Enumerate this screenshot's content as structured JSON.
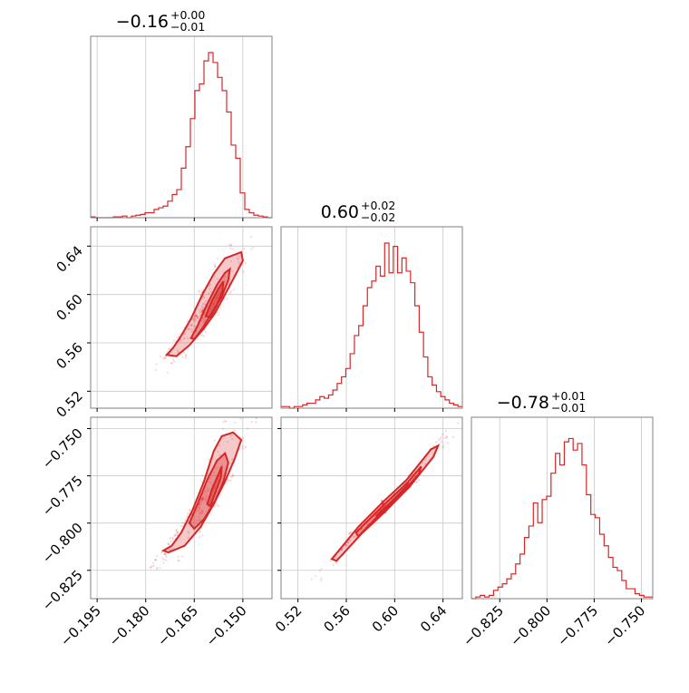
{
  "chart_data": {
    "type": "corner",
    "color": "#d62728",
    "grid": true,
    "parameters": [
      {
        "title": {
          "value": "−0.16",
          "upper": "+0.00",
          "lower": "−0.01"
        },
        "range": [
          -0.197,
          -0.141
        ],
        "ticks": [
          -0.195,
          -0.18,
          -0.165,
          -0.15
        ],
        "tick_labels": [
          "−0.195",
          "−0.180",
          "−0.165",
          "−0.150"
        ],
        "hist": [
          0.005,
          0.0,
          0.0,
          0.0,
          0.0,
          0.005,
          0.005,
          0.01,
          0.0,
          0.01,
          0.015,
          0.02,
          0.03,
          0.03,
          0.05,
          0.06,
          0.07,
          0.1,
          0.14,
          0.17,
          0.3,
          0.43,
          0.6,
          0.77,
          0.81,
          0.95,
          1.0,
          0.94,
          0.85,
          0.77,
          0.64,
          0.44,
          0.36,
          0.15,
          0.05,
          0.03,
          0.015,
          0.01,
          0.005,
          0.0
        ]
      },
      {
        "title": {
          "value": "0.60",
          "upper": "+0.02",
          "lower": "−0.02"
        },
        "range": [
          0.506,
          0.656
        ],
        "ticks": [
          0.52,
          0.56,
          0.6,
          0.64
        ],
        "tick_labels": [
          "0.52",
          "0.56",
          "0.60",
          "0.64"
        ],
        "hist": [
          0.01,
          0.01,
          0.0,
          0.01,
          0.01,
          0.02,
          0.03,
          0.03,
          0.05,
          0.07,
          0.06,
          0.08,
          0.11,
          0.15,
          0.19,
          0.24,
          0.33,
          0.44,
          0.5,
          0.62,
          0.73,
          0.77,
          0.86,
          0.8,
          1.0,
          0.82,
          0.98,
          0.82,
          0.91,
          0.83,
          0.76,
          0.62,
          0.46,
          0.31,
          0.19,
          0.14,
          0.1,
          0.07,
          0.05,
          0.03,
          0.02,
          0.01
        ]
      },
      {
        "title": {
          "value": "−0.78",
          "upper": "+0.01",
          "lower": "−0.01"
        },
        "range": [
          -0.84,
          -0.744
        ],
        "ticks": [
          -0.825,
          -0.8,
          -0.775,
          -0.75
        ],
        "tick_labels": [
          "−0.825",
          "−0.800",
          "−0.775",
          "−0.750"
        ],
        "hist": [
          0.0,
          0.01,
          0.02,
          0.01,
          0.02,
          0.05,
          0.07,
          0.09,
          0.12,
          0.15,
          0.21,
          0.27,
          0.37,
          0.44,
          0.58,
          0.46,
          0.6,
          0.62,
          0.76,
          0.88,
          0.81,
          0.95,
          0.97,
          0.9,
          0.94,
          0.81,
          0.63,
          0.51,
          0.49,
          0.39,
          0.32,
          0.25,
          0.19,
          0.17,
          0.11,
          0.06,
          0.06,
          0.03,
          0.02,
          0.01,
          0.01
        ]
      }
    ],
    "contours": [
      {
        "pair": [
          0,
          1
        ],
        "level_paths": [
          [
            [
              -0.1735,
              0.55
            ],
            [
              -0.1715,
              0.556
            ],
            [
              -0.169,
              0.566
            ],
            [
              -0.166,
              0.58
            ],
            [
              -0.1625,
              0.6
            ],
            [
              -0.159,
              0.617
            ],
            [
              -0.1555,
              0.63
            ],
            [
              -0.1505,
              0.635
            ],
            [
              -0.15,
              0.628
            ],
            [
              -0.1525,
              0.615
            ],
            [
              -0.1555,
              0.6
            ],
            [
              -0.1585,
              0.585
            ],
            [
              -0.162,
              0.572
            ],
            [
              -0.1665,
              0.558
            ],
            [
              -0.1705,
              0.549
            ],
            [
              -0.1735,
              0.55
            ]
          ],
          [
            [
              -0.166,
              0.564
            ],
            [
              -0.164,
              0.574
            ],
            [
              -0.161,
              0.592
            ],
            [
              -0.158,
              0.608
            ],
            [
              -0.1555,
              0.618
            ],
            [
              -0.154,
              0.621
            ],
            [
              -0.1545,
              0.612
            ],
            [
              -0.1565,
              0.598
            ],
            [
              -0.1595,
              0.585
            ],
            [
              -0.1625,
              0.572
            ],
            [
              -0.165,
              0.563
            ],
            [
              -0.166,
              0.564
            ]
          ],
          [
            [
              -0.1615,
              0.582
            ],
            [
              -0.1595,
              0.595
            ],
            [
              -0.1575,
              0.605
            ],
            [
              -0.156,
              0.611
            ],
            [
              -0.1563,
              0.603
            ],
            [
              -0.158,
              0.591
            ],
            [
              -0.16,
              0.581
            ],
            [
              -0.1615,
              0.582
            ]
          ]
        ]
      },
      {
        "pair": [
          0,
          2
        ],
        "level_paths": [
          [
            [
              -0.1745,
              -0.8145
            ],
            [
              -0.172,
              -0.812
            ],
            [
              -0.169,
              -0.805
            ],
            [
              -0.1655,
              -0.793
            ],
            [
              -0.162,
              -0.778
            ],
            [
              -0.159,
              -0.762
            ],
            [
              -0.1565,
              -0.754
            ],
            [
              -0.153,
              -0.752
            ],
            [
              -0.1505,
              -0.756
            ],
            [
              -0.1525,
              -0.766
            ],
            [
              -0.1555,
              -0.778
            ],
            [
              -0.159,
              -0.79
            ],
            [
              -0.163,
              -0.802
            ],
            [
              -0.168,
              -0.812
            ],
            [
              -0.173,
              -0.8155
            ],
            [
              -0.1745,
              -0.8145
            ]
          ],
          [
            [
              -0.1665,
              -0.8
            ],
            [
              -0.164,
              -0.79
            ],
            [
              -0.161,
              -0.777
            ],
            [
              -0.158,
              -0.767
            ],
            [
              -0.1555,
              -0.763
            ],
            [
              -0.1545,
              -0.768
            ],
            [
              -0.156,
              -0.778
            ],
            [
              -0.1585,
              -0.788
            ],
            [
              -0.162,
              -0.798
            ],
            [
              -0.165,
              -0.803
            ],
            [
              -0.1665,
              -0.8
            ]
          ],
          [
            [
              -0.161,
              -0.79
            ],
            [
              -0.1595,
              -0.782
            ],
            [
              -0.1575,
              -0.774
            ],
            [
              -0.1565,
              -0.77
            ],
            [
              -0.1568,
              -0.776
            ],
            [
              -0.1585,
              -0.784
            ],
            [
              -0.16,
              -0.791
            ],
            [
              -0.161,
              -0.79
            ]
          ]
        ]
      },
      {
        "pair": [
          1,
          2
        ],
        "level_paths": [
          [
            [
              0.548,
              -0.819
            ],
            [
              0.57,
              -0.802
            ],
            [
              0.59,
              -0.789
            ],
            [
              0.61,
              -0.777
            ],
            [
              0.63,
              -0.761
            ],
            [
              0.636,
              -0.759
            ],
            [
              0.632,
              -0.765
            ],
            [
              0.612,
              -0.781
            ],
            [
              0.592,
              -0.794
            ],
            [
              0.572,
              -0.806
            ],
            [
              0.552,
              -0.82
            ],
            [
              0.548,
              -0.819
            ]
          ],
          [
            [
              0.568,
              -0.805
            ],
            [
              0.59,
              -0.791
            ],
            [
              0.61,
              -0.779
            ],
            [
              0.622,
              -0.77
            ],
            [
              0.62,
              -0.774
            ],
            [
              0.606,
              -0.784
            ],
            [
              0.588,
              -0.795
            ],
            [
              0.57,
              -0.807
            ],
            [
              0.568,
              -0.805
            ]
          ],
          [
            [
              0.585,
              -0.796
            ],
            [
              0.6,
              -0.787
            ],
            [
              0.612,
              -0.779
            ],
            [
              0.61,
              -0.782
            ],
            [
              0.597,
              -0.79
            ],
            [
              0.586,
              -0.7975
            ],
            [
              0.585,
              -0.796
            ]
          ]
        ]
      }
    ]
  }
}
